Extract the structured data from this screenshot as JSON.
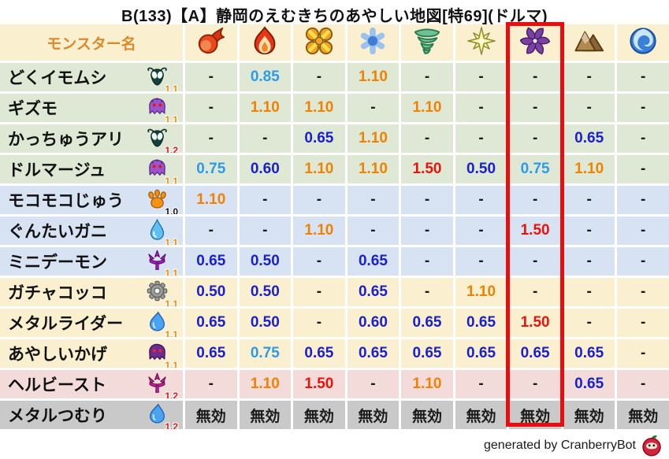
{
  "title": "B(133)【A】静岡のえむきちのあやしい地図[特69](ドルマ)",
  "table": {
    "name_header": "モンスター名",
    "element_columns": [
      {
        "id": "fire-orb"
      },
      {
        "id": "flame"
      },
      {
        "id": "explosion"
      },
      {
        "id": "ice"
      },
      {
        "id": "wind"
      },
      {
        "id": "light"
      },
      {
        "id": "dark"
      },
      {
        "id": "earth"
      },
      {
        "id": "water"
      }
    ],
    "highlight_column_index": 6,
    "highlight_color": "#e60e0e",
    "rows": [
      {
        "name": "どくイモムシ",
        "icon": "bug",
        "level": "1.1",
        "level_color": "orange",
        "group": "green",
        "values": [
          "-",
          "0.85",
          "-",
          "1.10",
          "-",
          "-",
          "-",
          "-",
          "-"
        ],
        "value_colors": [
          "black",
          "lightblue",
          "black",
          "orange",
          "black",
          "black",
          "black",
          "black",
          "black"
        ]
      },
      {
        "name": "ギズモ",
        "icon": "ghost",
        "level": "1.1",
        "level_color": "orange",
        "group": "green",
        "values": [
          "-",
          "1.10",
          "1.10",
          "-",
          "1.10",
          "-",
          "-",
          "-",
          "-"
        ],
        "value_colors": [
          "black",
          "orange",
          "orange",
          "black",
          "orange",
          "black",
          "black",
          "black",
          "black"
        ]
      },
      {
        "name": "かっちゅうアリ",
        "icon": "bug",
        "level": "1.2",
        "level_color": "red",
        "group": "green",
        "values": [
          "-",
          "-",
          "0.65",
          "1.10",
          "-",
          "-",
          "-",
          "0.65",
          "-"
        ],
        "value_colors": [
          "black",
          "black",
          "darkblue",
          "orange",
          "black",
          "black",
          "black",
          "darkblue",
          "black"
        ]
      },
      {
        "name": "ドルマージュ",
        "icon": "ghost",
        "level": "1.1",
        "level_color": "orange",
        "group": "green",
        "values": [
          "0.75",
          "0.60",
          "1.10",
          "1.10",
          "1.50",
          "0.50",
          "0.75",
          "1.10",
          "-"
        ],
        "value_colors": [
          "lightblue",
          "darkblue",
          "orange",
          "orange",
          "red",
          "darkblue",
          "lightblue",
          "orange",
          "black"
        ]
      },
      {
        "name": "モコモコじゅう",
        "icon": "paw",
        "level": "1.0",
        "level_color": "black",
        "group": "blue",
        "values": [
          "1.10",
          "-",
          "-",
          "-",
          "-",
          "-",
          "-",
          "-",
          "-"
        ],
        "value_colors": [
          "orange",
          "black",
          "black",
          "black",
          "black",
          "black",
          "black",
          "black",
          "black"
        ]
      },
      {
        "name": "ぐんたいガニ",
        "icon": "waterdrop",
        "level": "1.1",
        "level_color": "orange",
        "group": "blue",
        "values": [
          "-",
          "-",
          "1.10",
          "-",
          "-",
          "-",
          "1.50",
          "-",
          "-"
        ],
        "value_colors": [
          "black",
          "black",
          "orange",
          "black",
          "black",
          "black",
          "red",
          "black",
          "black"
        ]
      },
      {
        "name": "ミニデーモン",
        "icon": "trident-purple",
        "level": "1.1",
        "level_color": "orange",
        "group": "blue",
        "values": [
          "0.65",
          "0.50",
          "-",
          "0.65",
          "-",
          "-",
          "-",
          "-",
          "-"
        ],
        "value_colors": [
          "darkblue",
          "darkblue",
          "black",
          "darkblue",
          "black",
          "black",
          "black",
          "black",
          "black"
        ]
      },
      {
        "name": "ガチャコッコ",
        "icon": "gear",
        "level": "1.1",
        "level_color": "orange",
        "group": "cream",
        "values": [
          "0.50",
          "0.50",
          "-",
          "0.65",
          "-",
          "1.10",
          "-",
          "-",
          "-"
        ],
        "value_colors": [
          "darkblue",
          "darkblue",
          "black",
          "darkblue",
          "black",
          "orange",
          "black",
          "black",
          "black"
        ]
      },
      {
        "name": "メタルライダー",
        "icon": "slime",
        "level": "1.1",
        "level_color": "orange",
        "group": "cream",
        "values": [
          "0.65",
          "0.50",
          "-",
          "0.60",
          "0.65",
          "0.65",
          "1.50",
          "-",
          "-"
        ],
        "value_colors": [
          "darkblue",
          "darkblue",
          "black",
          "darkblue",
          "darkblue",
          "darkblue",
          "red",
          "black",
          "black"
        ]
      },
      {
        "name": "あやしいかげ",
        "icon": "ghost-dark",
        "level": "1.1",
        "level_color": "orange",
        "group": "cream",
        "values": [
          "0.65",
          "0.75",
          "0.65",
          "0.65",
          "0.65",
          "0.65",
          "0.65",
          "0.65",
          "-"
        ],
        "value_colors": [
          "darkblue",
          "lightblue",
          "darkblue",
          "darkblue",
          "darkblue",
          "darkblue",
          "darkblue",
          "darkblue",
          "black"
        ]
      },
      {
        "name": "ヘルビースト",
        "icon": "trident-magenta",
        "level": "1.2",
        "level_color": "red",
        "group": "pink",
        "values": [
          "-",
          "1.10",
          "1.50",
          "-",
          "1.10",
          "-",
          "-",
          "0.65",
          "-"
        ],
        "value_colors": [
          "black",
          "orange",
          "red",
          "black",
          "orange",
          "black",
          "black",
          "darkblue",
          "black"
        ]
      },
      {
        "name": "メタルつむり",
        "icon": "slime",
        "level": "1.2",
        "level_color": "red",
        "group": "gray",
        "values": [
          "無効",
          "無効",
          "無効",
          "無効",
          "無効",
          "無効",
          "無効",
          "無効",
          "無効"
        ],
        "value_colors": [
          "black",
          "black",
          "black",
          "black",
          "black",
          "black",
          "black",
          "black",
          "black"
        ]
      }
    ]
  },
  "footer": {
    "credit": "generated by CranberryBot",
    "bot_icon": "cranberry-bot"
  }
}
